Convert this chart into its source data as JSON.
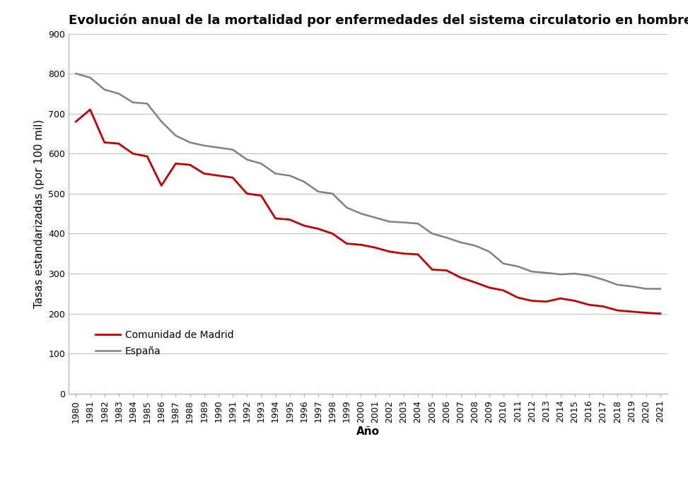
{
  "title": "Evolución anual de la mortalidad por enfermedades del sistema circulatorio en hombres",
  "ylabel": "Tasas estandarizadas (por 100 mil)",
  "xlabel": "Año",
  "years": [
    1980,
    1981,
    1982,
    1983,
    1984,
    1985,
    1986,
    1987,
    1988,
    1989,
    1990,
    1991,
    1992,
    1993,
    1994,
    1995,
    1996,
    1997,
    1998,
    1999,
    2000,
    2001,
    2002,
    2003,
    2004,
    2005,
    2006,
    2007,
    2008,
    2009,
    2010,
    2011,
    2012,
    2013,
    2014,
    2015,
    2016,
    2017,
    2018,
    2019,
    2020,
    2021
  ],
  "madrid": [
    680,
    710,
    628,
    625,
    600,
    593,
    520,
    575,
    572,
    550,
    545,
    540,
    500,
    495,
    438,
    435,
    420,
    412,
    400,
    375,
    372,
    365,
    355,
    350,
    348,
    310,
    308,
    290,
    278,
    265,
    258,
    240,
    232,
    230,
    238,
    232,
    222,
    218,
    208,
    205,
    202,
    200
  ],
  "espana": [
    800,
    790,
    760,
    750,
    728,
    725,
    680,
    645,
    628,
    620,
    615,
    610,
    585,
    575,
    550,
    545,
    530,
    505,
    500,
    465,
    450,
    440,
    430,
    428,
    425,
    400,
    390,
    378,
    370,
    355,
    325,
    318,
    305,
    302,
    298,
    300,
    295,
    285,
    272,
    268,
    262,
    262
  ],
  "madrid_color": "#c00000",
  "espana_color": "#808080",
  "ylim": [
    0,
    900
  ],
  "yticks": [
    0,
    100,
    200,
    300,
    400,
    500,
    600,
    700,
    800,
    900
  ],
  "background_color": "#ffffff",
  "grid_color": "#c0c0c0",
  "title_fontsize": 13,
  "axis_label_fontsize": 11,
  "tick_fontsize": 9,
  "legend_fontsize": 10,
  "legend_madrid": "Comunidad de Madrid",
  "legend_espana": "España"
}
